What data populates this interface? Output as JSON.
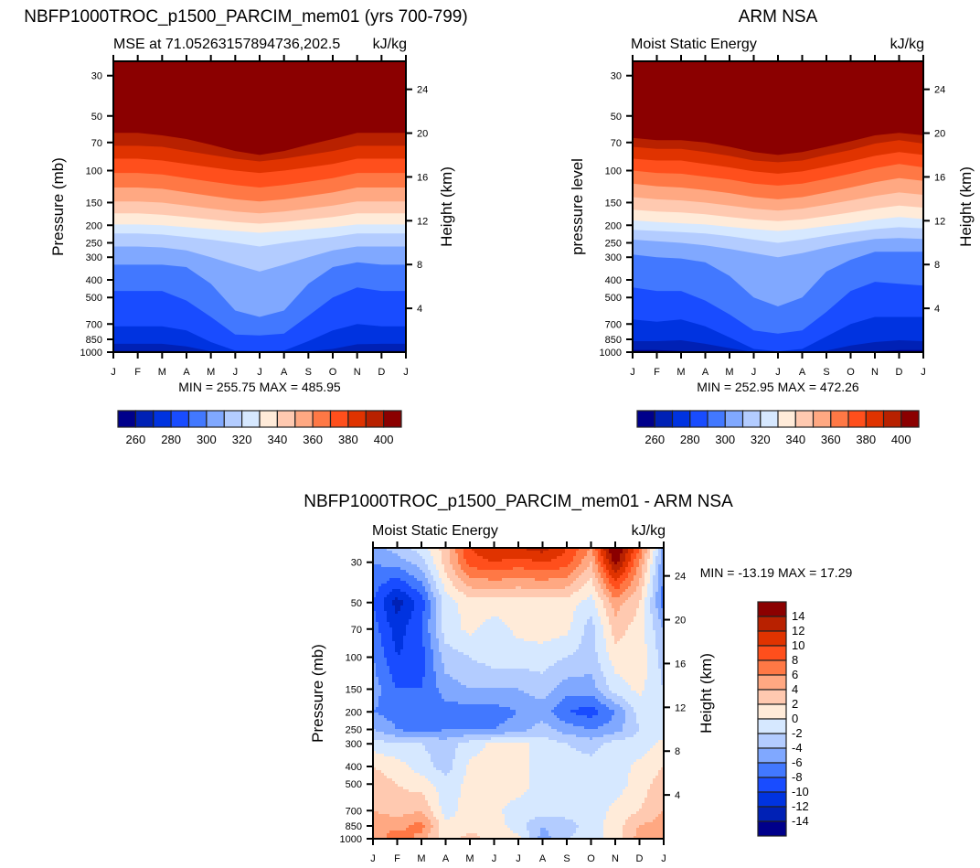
{
  "palette": [
    "#00008b",
    "#0021b5",
    "#0033e0",
    "#194cff",
    "#4278ff",
    "#80a8ff",
    "#b3ccff",
    "#d6e8ff",
    "#ffebd9",
    "#ffc9b0",
    "#ffa882",
    "#ff7845",
    "#ff4f1c",
    "#e03300",
    "#b82100",
    "#8b0000"
  ],
  "chart_data": [
    {
      "id": "model",
      "type": "heatmap",
      "subtype": "filled-contour",
      "title": "NBFP1000TROC_p1500_PARCIM_mem01 (yrs 700-799)",
      "left_string": "MSE at 71.05263157894736,202.5",
      "right_string": "kJ/kg",
      "xlabel": "",
      "ylabel": "Pressure (mb)",
      "ylabel_right": "Height (km)",
      "x_ticks": [
        "J",
        "F",
        "M",
        "A",
        "M",
        "J",
        "J",
        "A",
        "S",
        "O",
        "N",
        "D",
        "J"
      ],
      "y_ticks": [
        30,
        50,
        70,
        100,
        150,
        200,
        250,
        300,
        400,
        500,
        700,
        850,
        1000
      ],
      "y_ticks_right": [
        24,
        20,
        16,
        12,
        8,
        4
      ],
      "ylim": [
        1000,
        25
      ],
      "min_max_text": "MIN = 255.75 MAX = 485.95",
      "colorbar": {
        "orientation": "horizontal",
        "levels": [
          255,
          260,
          265,
          270,
          275,
          280,
          285,
          290,
          295,
          300,
          305,
          310,
          315,
          320,
          325,
          330,
          335,
          340,
          345,
          350,
          355,
          360,
          365,
          370,
          375,
          380,
          385,
          390,
          395,
          400
        ],
        "boundaries": [
          260,
          270,
          280,
          290,
          300,
          310,
          320,
          330,
          340,
          350,
          360,
          370,
          380,
          390,
          400
        ],
        "labels": [
          "260",
          "280",
          "300",
          "320",
          "340",
          "360",
          "380",
          "400"
        ]
      },
      "approx_level_pressure_by_month": {
        "note": "Approximate pressure (mb) of each contour boundary, months J..J (13 points), read from the figure",
        "boundaries": {
          "260": [
            985,
            985,
            985,
            992,
            1000,
            1000,
            1000,
            1000,
            1000,
            1000,
            990,
            985,
            985
          ],
          "270": [
            900,
            900,
            900,
            930,
            990,
            1000,
            1000,
            1000,
            990,
            960,
            905,
            900,
            900
          ],
          "280": [
            720,
            720,
            720,
            760,
            880,
            980,
            985,
            980,
            870,
            760,
            700,
            720,
            720
          ],
          "290": [
            460,
            460,
            460,
            520,
            640,
            800,
            810,
            790,
            630,
            500,
            440,
            460,
            460
          ],
          "300": [
            330,
            330,
            330,
            340,
            420,
            590,
            640,
            590,
            420,
            340,
            320,
            330,
            330
          ],
          "310": [
            262,
            262,
            265,
            275,
            300,
            330,
            360,
            330,
            300,
            275,
            262,
            262,
            262
          ],
          "320": [
            222,
            222,
            225,
            232,
            240,
            250,
            262,
            250,
            240,
            232,
            222,
            222,
            222
          ],
          "330": [
            198,
            198,
            200,
            205,
            210,
            215,
            220,
            215,
            210,
            205,
            198,
            198,
            198
          ],
          "340": [
            172,
            172,
            175,
            180,
            186,
            192,
            196,
            192,
            186,
            180,
            172,
            172,
            172
          ],
          "350": [
            148,
            148,
            150,
            156,
            162,
            168,
            172,
            168,
            162,
            156,
            148,
            148,
            148
          ],
          "360": [
            124,
            124,
            126,
            132,
            138,
            144,
            148,
            144,
            138,
            132,
            124,
            124,
            124
          ],
          "370": [
            103,
            103,
            105,
            110,
            115,
            120,
            124,
            120,
            115,
            110,
            103,
            103,
            103
          ],
          "380": [
            86,
            86,
            88,
            92,
            96,
            100,
            103,
            100,
            96,
            92,
            86,
            86,
            86
          ],
          "390": [
            73,
            73,
            74,
            78,
            82,
            86,
            89,
            86,
            82,
            78,
            73,
            73,
            73
          ],
          "400": [
            62,
            62,
            64,
            67,
            72,
            78,
            82,
            78,
            72,
            67,
            62,
            62,
            62
          ]
        }
      }
    },
    {
      "id": "obs",
      "type": "heatmap",
      "subtype": "filled-contour",
      "title": "ARM NSA",
      "left_string": "Moist Static Energy",
      "right_string": "kJ/kg",
      "xlabel": "",
      "ylabel": "pressure level",
      "ylabel_right": "Height (km)",
      "x_ticks": [
        "J",
        "F",
        "M",
        "A",
        "M",
        "J",
        "J",
        "A",
        "S",
        "O",
        "N",
        "D",
        "J"
      ],
      "y_ticks": [
        30,
        50,
        70,
        100,
        150,
        200,
        250,
        300,
        400,
        500,
        700,
        850,
        1000
      ],
      "y_ticks_right": [
        24,
        20,
        16,
        12,
        8,
        4
      ],
      "ylim": [
        1000,
        25
      ],
      "min_max_text": "MIN = 252.95 MAX = 472.26",
      "colorbar": {
        "orientation": "horizontal",
        "boundaries": [
          260,
          270,
          280,
          290,
          300,
          310,
          320,
          330,
          340,
          350,
          360,
          370,
          380,
          390,
          400
        ],
        "labels": [
          "260",
          "280",
          "300",
          "320",
          "340",
          "360",
          "380",
          "400"
        ]
      },
      "approx_level_pressure_by_month": {
        "note": "Approximate pressure (mb) of each contour boundary, months J..J (13 points), read from the figure",
        "boundaries": {
          "260": [
            975,
            975,
            985,
            1000,
            1000,
            1000,
            1000,
            1000,
            1000,
            1000,
            990,
            975,
            975
          ],
          "270": [
            870,
            870,
            860,
            900,
            950,
            1000,
            1000,
            1000,
            980,
            920,
            880,
            860,
            870
          ],
          "280": [
            660,
            680,
            660,
            720,
            830,
            960,
            990,
            960,
            820,
            700,
            640,
            640,
            640
          ],
          "290": [
            440,
            460,
            460,
            520,
            620,
            760,
            790,
            760,
            600,
            460,
            410,
            420,
            430
          ],
          "300": [
            290,
            300,
            305,
            320,
            380,
            500,
            560,
            500,
            360,
            310,
            280,
            280,
            280
          ],
          "310": [
            240,
            245,
            250,
            258,
            270,
            285,
            300,
            285,
            265,
            250,
            238,
            235,
            238
          ],
          "320": [
            212,
            215,
            218,
            222,
            230,
            240,
            250,
            240,
            228,
            218,
            210,
            205,
            208
          ],
          "330": [
            188,
            192,
            195,
            198,
            204,
            210,
            215,
            210,
            202,
            195,
            186,
            180,
            185
          ],
          "340": [
            164,
            168,
            170,
            174,
            180,
            186,
            190,
            186,
            178,
            170,
            162,
            156,
            160
          ],
          "350": [
            140,
            144,
            146,
            150,
            156,
            162,
            166,
            162,
            154,
            146,
            138,
            132,
            136
          ],
          "360": [
            118,
            122,
            124,
            128,
            133,
            140,
            144,
            140,
            132,
            124,
            116,
            110,
            114
          ],
          "370": [
            100,
            103,
            104,
            108,
            112,
            118,
            121,
            118,
            111,
            104,
            97,
            92,
            96
          ],
          "380": [
            86,
            88,
            88,
            92,
            96,
            101,
            104,
            101,
            95,
            89,
            83,
            79,
            82
          ],
          "390": [
            74,
            76,
            76,
            79,
            83,
            88,
            90,
            88,
            82,
            77,
            71,
            68,
            71
          ],
          "400": [
            66,
            68,
            68,
            70,
            74,
            79,
            82,
            79,
            74,
            69,
            64,
            62,
            64
          ]
        }
      }
    },
    {
      "id": "diff",
      "type": "heatmap",
      "subtype": "filled-contour",
      "title": "NBFP1000TROC_p1500_PARCIM_mem01 - ARM NSA",
      "left_string": "Moist Static Energy",
      "right_string": "kJ/kg",
      "xlabel": "",
      "ylabel": "Pressure (mb)",
      "ylabel_right": "Height (km)",
      "x_ticks": [
        "J",
        "F",
        "M",
        "A",
        "M",
        "J",
        "J",
        "A",
        "S",
        "O",
        "N",
        "D",
        "J"
      ],
      "y_ticks": [
        30,
        50,
        70,
        100,
        150,
        200,
        250,
        300,
        400,
        500,
        700,
        850,
        1000
      ],
      "y_ticks_right": [
        24,
        20,
        16,
        12,
        8,
        4
      ],
      "ylim": [
        1000,
        25
      ],
      "min_max_text": "MIN = -13.19 MAX =  17.29",
      "colorbar": {
        "orientation": "vertical",
        "boundaries": [
          -14,
          -12,
          -10,
          -8,
          -6,
          -4,
          -2,
          0,
          2,
          4,
          6,
          8,
          10,
          12,
          14
        ],
        "labels": [
          "14",
          "12",
          "10",
          "8",
          "6",
          "4",
          "2",
          "0",
          "-2",
          "-4",
          "-6",
          "-8",
          "-10",
          "-12",
          "-14"
        ]
      },
      "grid_pressure": [
        25,
        30,
        50,
        70,
        100,
        150,
        200,
        250,
        300,
        400,
        500,
        700,
        850,
        1000
      ],
      "grid_values": [
        [
          -5,
          -3,
          -1,
          3,
          10,
          12,
          12,
          13,
          10,
          6,
          17,
          8,
          -5
        ],
        [
          -6,
          -5,
          -3,
          3,
          9,
          10,
          9,
          10,
          9,
          4,
          15,
          6,
          -6
        ],
        [
          -8,
          -13,
          -9,
          -1,
          1,
          1,
          1,
          1,
          1,
          -1,
          5,
          2,
          -7
        ],
        [
          -7,
          -11,
          -8,
          -1,
          0.5,
          -1,
          0.5,
          1,
          0.5,
          -3,
          3,
          1,
          -4
        ],
        [
          -6,
          -10,
          -9,
          -3,
          -2,
          -1,
          -1,
          -1,
          -2,
          -3,
          1,
          1.5,
          -3
        ],
        [
          -5,
          -8,
          -8,
          -5,
          -4,
          -4,
          -4,
          -3,
          -5,
          -5,
          -1,
          0.5,
          -2
        ],
        [
          -6,
          -7,
          -8,
          -7,
          -7,
          -7,
          -6,
          -5,
          -8,
          -9,
          -6,
          -1,
          -2
        ],
        [
          -4,
          -6,
          -7,
          -6,
          -6,
          -6,
          -5,
          -3,
          -5,
          -6,
          -5,
          -2,
          -1
        ],
        [
          -1,
          -2,
          -2,
          -3,
          -1,
          0.5,
          1,
          -1,
          -2,
          -3,
          -1,
          -1,
          0.5
        ],
        [
          2,
          1,
          -1,
          -3,
          0.5,
          1,
          1,
          -1,
          -1,
          -1,
          -1,
          0.5,
          2
        ],
        [
          3,
          2,
          1,
          -1,
          0.5,
          1,
          1,
          -1,
          -1,
          -1,
          -1,
          1,
          3
        ],
        [
          4,
          3,
          4,
          -1,
          1,
          0.5,
          -1,
          -1,
          -1,
          -1,
          0.5,
          2,
          4
        ],
        [
          6,
          5,
          7,
          0.5,
          1,
          1,
          -1,
          -4,
          -3,
          -1,
          1,
          4,
          5
        ],
        [
          4,
          8,
          5,
          0.5,
          3,
          1,
          0.5,
          -5,
          -2,
          -1,
          1,
          5,
          5
        ]
      ]
    }
  ]
}
